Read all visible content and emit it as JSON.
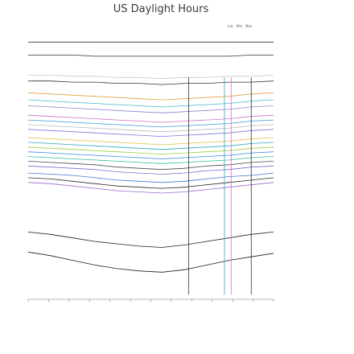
{
  "chart_data": {
    "type": "line",
    "title": "US Daylight Hours",
    "xlabel": "",
    "ylabel": "",
    "legend": {
      "placement": "top-right",
      "entries": [
        "Lat",
        "Min",
        "Max"
      ]
    },
    "x_tick_labels": [
      "",
      "",
      "",
      "",
      "",
      "",
      "",
      "",
      "",
      "",
      "",
      "",
      ""
    ],
    "ylim": [
      0,
      24
    ],
    "series": [
      {
        "values": [
          4.0,
          3.7,
          3.3,
          2.9,
          2.6,
          2.4,
          2.3,
          2.5,
          2.9,
          3.3,
          3.6,
          3.9
        ],
        "color": "#1c1c1c",
        "min": 2.3,
        "max": 4.0
      },
      {
        "values": [
          5.7,
          5.5,
          5.2,
          4.9,
          4.7,
          4.5,
          4.4,
          4.6,
          4.9,
          5.2,
          5.5,
          5.7
        ],
        "color": "#1f1f1f",
        "min": 4.4,
        "max": 5.7
      },
      {
        "values": [
          9.9,
          9.8,
          9.6,
          9.4,
          9.2,
          9.1,
          9.0,
          9.1,
          9.3,
          9.5,
          9.7,
          9.9
        ],
        "color": "#9a6ad1",
        "min": 9.0,
        "max": 9.9
      },
      {
        "values": [
          10.3,
          10.2,
          10.0,
          9.8,
          9.6,
          9.5,
          9.4,
          9.5,
          9.7,
          9.9,
          10.1,
          10.3
        ],
        "color": "#2b2b2b",
        "min": 9.4,
        "max": 10.3
      },
      {
        "values": [
          10.7,
          10.6,
          10.5,
          10.3,
          10.1,
          10.0,
          9.9,
          10.0,
          10.2,
          10.4,
          10.5,
          10.7
        ],
        "color": "#3b7bd6",
        "min": 9.9,
        "max": 10.7
      },
      {
        "values": [
          11.3,
          11.2,
          11.1,
          11.0,
          10.8,
          10.7,
          10.6,
          10.7,
          10.9,
          11.0,
          11.2,
          11.3
        ],
        "color": "#7b6fd0",
        "min": 10.6,
        "max": 11.3
      },
      {
        "values": [
          11.7,
          11.6,
          11.5,
          11.4,
          11.2,
          11.1,
          11.0,
          11.1,
          11.3,
          11.4,
          11.6,
          11.7
        ],
        "color": "#4c4c4c",
        "min": 11.0,
        "max": 11.7
      },
      {
        "values": [
          12.1,
          12.0,
          11.9,
          11.8,
          11.7,
          11.6,
          11.5,
          11.6,
          11.7,
          11.8,
          12.0,
          12.1
        ],
        "color": "#2fbf9a",
        "min": 11.5,
        "max": 12.1
      },
      {
        "values": [
          12.5,
          12.4,
          12.3,
          12.2,
          12.1,
          12.0,
          11.9,
          12.0,
          12.1,
          12.2,
          12.4,
          12.5
        ],
        "color": "#3a8fd8",
        "min": 11.9,
        "max": 12.5
      },
      {
        "values": [
          12.9,
          12.8,
          12.7,
          12.6,
          12.5,
          12.4,
          12.3,
          12.4,
          12.5,
          12.6,
          12.8,
          12.9
        ],
        "color": "#a0d040",
        "min": 12.3,
        "max": 12.9
      },
      {
        "values": [
          13.3,
          13.2,
          13.1,
          13.0,
          12.9,
          12.8,
          12.7,
          12.8,
          12.9,
          13.0,
          13.2,
          13.3
        ],
        "color": "#2aa8c0",
        "min": 12.7,
        "max": 13.3
      },
      {
        "values": [
          13.7,
          13.6,
          13.5,
          13.4,
          13.3,
          13.2,
          13.1,
          13.2,
          13.3,
          13.4,
          13.6,
          13.7
        ],
        "color": "#e0c040",
        "min": 13.1,
        "max": 13.7
      },
      {
        "values": [
          14.4,
          14.3,
          14.2,
          14.1,
          14.0,
          13.9,
          13.8,
          13.9,
          14.0,
          14.1,
          14.3,
          14.4
        ],
        "color": "#7a7ad8",
        "min": 13.8,
        "max": 14.4
      },
      {
        "values": [
          14.8,
          14.7,
          14.6,
          14.5,
          14.4,
          14.3,
          14.2,
          14.3,
          14.4,
          14.5,
          14.7,
          14.8
        ],
        "color": "#bbbbbb",
        "min": 14.2,
        "max": 14.8
      },
      {
        "values": [
          15.2,
          15.1,
          15.0,
          14.9,
          14.8,
          14.7,
          14.6,
          14.7,
          14.8,
          14.9,
          15.1,
          15.2
        ],
        "color": "#3a9ad8",
        "min": 14.6,
        "max": 15.2
      },
      {
        "values": [
          15.6,
          15.5,
          15.4,
          15.3,
          15.2,
          15.1,
          15.0,
          15.1,
          15.2,
          15.3,
          15.5,
          15.6
        ],
        "color": "#d070c0",
        "min": 15.0,
        "max": 15.6
      },
      {
        "values": [
          16.4,
          16.3,
          16.2,
          16.1,
          16.0,
          15.9,
          15.8,
          15.9,
          16.0,
          16.1,
          16.3,
          16.4
        ],
        "color": "#9080d0",
        "min": 15.8,
        "max": 16.4
      },
      {
        "values": [
          16.9,
          16.8,
          16.7,
          16.6,
          16.5,
          16.4,
          16.3,
          16.4,
          16.5,
          16.6,
          16.8,
          16.9
        ],
        "color": "#40b8c8",
        "min": 16.3,
        "max": 16.9
      },
      {
        "values": [
          17.5,
          17.4,
          17.3,
          17.2,
          17.1,
          17.0,
          16.9,
          17.0,
          17.1,
          17.2,
          17.4,
          17.5
        ],
        "color": "#e0a040",
        "min": 16.9,
        "max": 17.5
      },
      {
        "values": [
          18.5,
          18.5,
          18.4,
          18.4,
          18.3,
          18.3,
          18.2,
          18.3,
          18.3,
          18.4,
          18.4,
          18.5
        ],
        "color": "#333333",
        "min": 18.2,
        "max": 18.5
      },
      {
        "values": [
          19.0,
          19.0,
          18.9,
          18.9,
          18.8,
          18.8,
          18.7,
          18.8,
          18.8,
          18.9,
          18.9,
          19.0
        ],
        "color": "#cccccc",
        "min": 18.7,
        "max": 19.0
      },
      {
        "values": [
          20.7,
          20.7,
          20.7,
          20.6,
          20.6,
          20.6,
          20.6,
          20.6,
          20.6,
          20.6,
          20.7,
          20.7
        ],
        "color": "#333333",
        "min": 20.6,
        "max": 20.7
      },
      {
        "values": [
          21.8,
          21.8,
          21.8,
          21.8,
          21.8,
          21.8,
          21.8,
          21.8,
          21.8,
          21.8,
          21.8,
          21.8
        ],
        "color": "#333333",
        "min": 21.8,
        "max": 21.8
      }
    ],
    "vertical_lines": [
      {
        "x": 7.2,
        "color": "#333333"
      },
      {
        "x": 8.8,
        "color": "#3aa0c8"
      },
      {
        "x": 9.1,
        "color": "#e070c0"
      },
      {
        "x": 10.0,
        "color": "#333333"
      }
    ],
    "grid": false
  }
}
